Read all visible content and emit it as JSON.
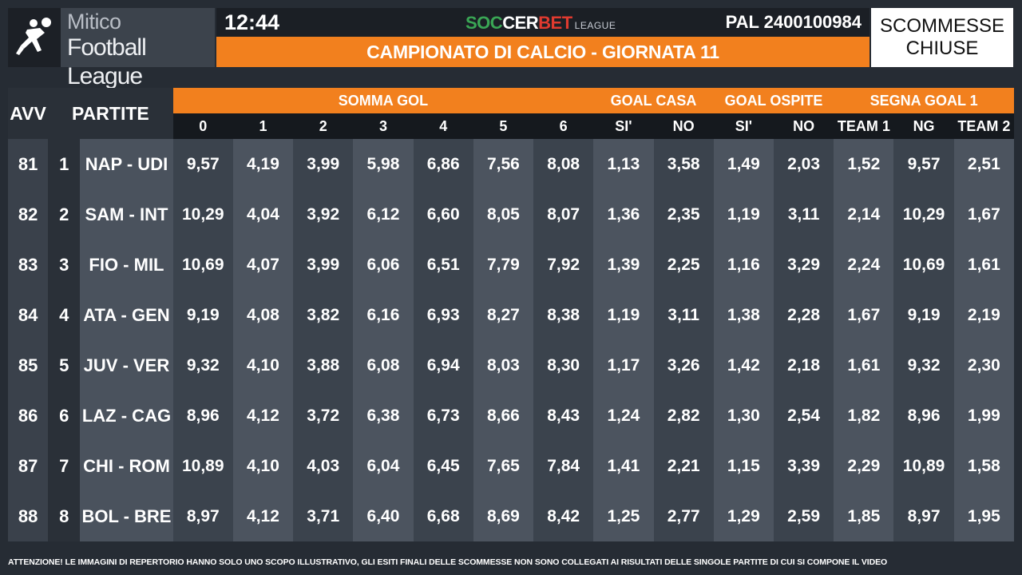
{
  "header": {
    "logo_line1": "Mitico",
    "logo_line2": "Football League",
    "clock": "12:44",
    "brand_part1": "SOC",
    "brand_part2": "CER",
    "brand_part3": "BET",
    "brand_part4": "LEAGUE",
    "pal_code": "PAL 2400100984",
    "title": "CAMPIONATO DI CALCIO - GIORNATA 11",
    "status_line1": "SCOMMESSE",
    "status_line2": "CHIUSE"
  },
  "table": {
    "col_avv": "AVV",
    "col_partite": "PARTITE",
    "groups": [
      "SOMMA GOL",
      "GOAL CASA",
      "GOAL OSPITE",
      "SEGNA GOAL 1"
    ],
    "subheaders": [
      "0",
      "1",
      "2",
      "3",
      "4",
      "5",
      "6",
      "SI'",
      "NO",
      "SI'",
      "NO",
      "TEAM 1",
      "NG",
      "TEAM 2"
    ],
    "rows": [
      {
        "avv": "81",
        "num": "1",
        "match": "NAP - UDI",
        "odds": [
          "9,57",
          "4,19",
          "3,99",
          "5,98",
          "6,86",
          "7,56",
          "8,08",
          "1,13",
          "3,58",
          "1,49",
          "2,03",
          "1,52",
          "9,57",
          "2,51"
        ]
      },
      {
        "avv": "82",
        "num": "2",
        "match": "SAM - INT",
        "odds": [
          "10,29",
          "4,04",
          "3,92",
          "6,12",
          "6,60",
          "8,05",
          "8,07",
          "1,36",
          "2,35",
          "1,19",
          "3,11",
          "2,14",
          "10,29",
          "1,67"
        ]
      },
      {
        "avv": "83",
        "num": "3",
        "match": "FIO - MIL",
        "odds": [
          "10,69",
          "4,07",
          "3,99",
          "6,06",
          "6,51",
          "7,79",
          "7,92",
          "1,39",
          "2,25",
          "1,16",
          "3,29",
          "2,24",
          "10,69",
          "1,61"
        ]
      },
      {
        "avv": "84",
        "num": "4",
        "match": "ATA - GEN",
        "odds": [
          "9,19",
          "4,08",
          "3,82",
          "6,16",
          "6,93",
          "8,27",
          "8,38",
          "1,19",
          "3,11",
          "1,38",
          "2,28",
          "1,67",
          "9,19",
          "2,19"
        ]
      },
      {
        "avv": "85",
        "num": "5",
        "match": "JUV - VER",
        "odds": [
          "9,32",
          "4,10",
          "3,88",
          "6,08",
          "6,94",
          "8,03",
          "8,30",
          "1,17",
          "3,26",
          "1,42",
          "2,18",
          "1,61",
          "9,32",
          "2,30"
        ]
      },
      {
        "avv": "86",
        "num": "6",
        "match": "LAZ - CAG",
        "odds": [
          "8,96",
          "4,12",
          "3,72",
          "6,38",
          "6,73",
          "8,66",
          "8,43",
          "1,24",
          "2,82",
          "1,30",
          "2,54",
          "1,82",
          "8,96",
          "1,99"
        ]
      },
      {
        "avv": "87",
        "num": "7",
        "match": "CHI - ROM",
        "odds": [
          "10,89",
          "4,10",
          "4,03",
          "6,04",
          "6,45",
          "7,65",
          "7,84",
          "1,41",
          "2,21",
          "1,15",
          "3,39",
          "2,29",
          "10,89",
          "1,58"
        ]
      },
      {
        "avv": "88",
        "num": "8",
        "match": "BOL - BRE",
        "odds": [
          "8,97",
          "4,12",
          "3,71",
          "6,40",
          "6,68",
          "8,69",
          "8,42",
          "1,25",
          "2,77",
          "1,29",
          "2,59",
          "1,85",
          "8,97",
          "1,95"
        ]
      }
    ]
  },
  "footer": "ATTENZIONE! LE IMMAGINI DI REPERTORIO HANNO SOLO UNO SCOPO ILLUSTRATIVO, GLI ESITI FINALI DELLE SCOMMESSE NON SONO COLLEGATI AI RISULTATI DELLE SINGOLE PARTITE DI CUI SI COMPONE IL VIDEO",
  "colors": {
    "accent_orange": "#f2801e",
    "background": "#262c34"
  }
}
